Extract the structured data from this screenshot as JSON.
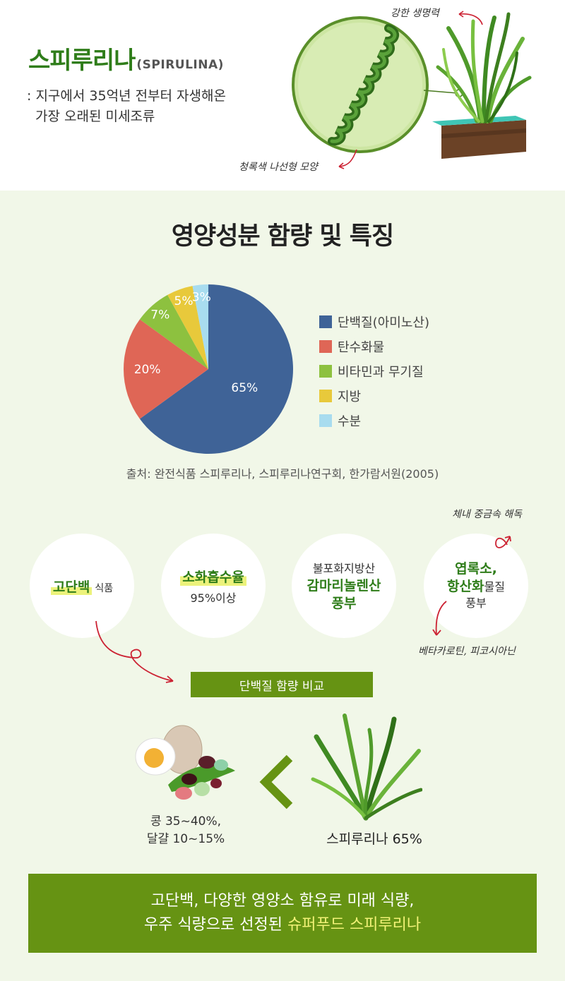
{
  "hero": {
    "title": "스피루리나",
    "title_en": "(SPIRULINA)",
    "desc_line1": ": 지구에서 35억년 전부터 자생해온",
    "desc_line2": "가장 오래된 미세조류",
    "note_strong": "강한 생명력",
    "note_spiral": "청록색 나선형 모양"
  },
  "section": {
    "title": "영양성분 함량 및 특징"
  },
  "chart_data": {
    "type": "pie",
    "title": "영양성분 함량 및 특징",
    "categories": [
      "단백질(아미노산)",
      "탄수화물",
      "비타민과 무기질",
      "지방",
      "수분"
    ],
    "values": [
      65,
      20,
      7,
      5,
      3
    ],
    "labels": [
      "65%",
      "20%",
      "7%",
      "5%",
      "3%"
    ],
    "colors": [
      "#3f6397",
      "#df6656",
      "#8dc13f",
      "#e8c93b",
      "#a8dcef"
    ],
    "legend_position": "right"
  },
  "source": "출처: 완전식품 스피루리나, 스피루리나연구회, 한가람서원(2005)",
  "features": {
    "f1_big": "고단백",
    "f1_small": "식품",
    "f2_big": "소화흡수율",
    "f2_sub": "95%이상",
    "f3_top": "불포화지방산",
    "f3_big1": "감마리놀렌산",
    "f3_big2": "풍부",
    "f4_big1": "엽록소,",
    "f4_big2": "항산화",
    "f4_mid": "물질",
    "f4_sub": "풍부",
    "note_detox": "체내 중금속 해독",
    "note_beta": "베타카로틴, 피코시아닌"
  },
  "compare": {
    "label": "단백질 함량 비교",
    "food_line1": "콩 35~40%,",
    "food_line2": "달걀 10~15%",
    "algae": "스피루리나 65%"
  },
  "banner": {
    "line1": "고단백, 다양한 영양소 함유로 미래 식량,",
    "line2_prefix": "우주 식량으로 선정된 ",
    "line2_accent": "슈퍼푸드 스피루리나"
  },
  "colors": {
    "brand_green": "#669313",
    "title_green": "#2f7d1a",
    "highlight": "#ecf27b",
    "accent_yellow": "#f2f277",
    "arrow_red": "#cc2233"
  }
}
